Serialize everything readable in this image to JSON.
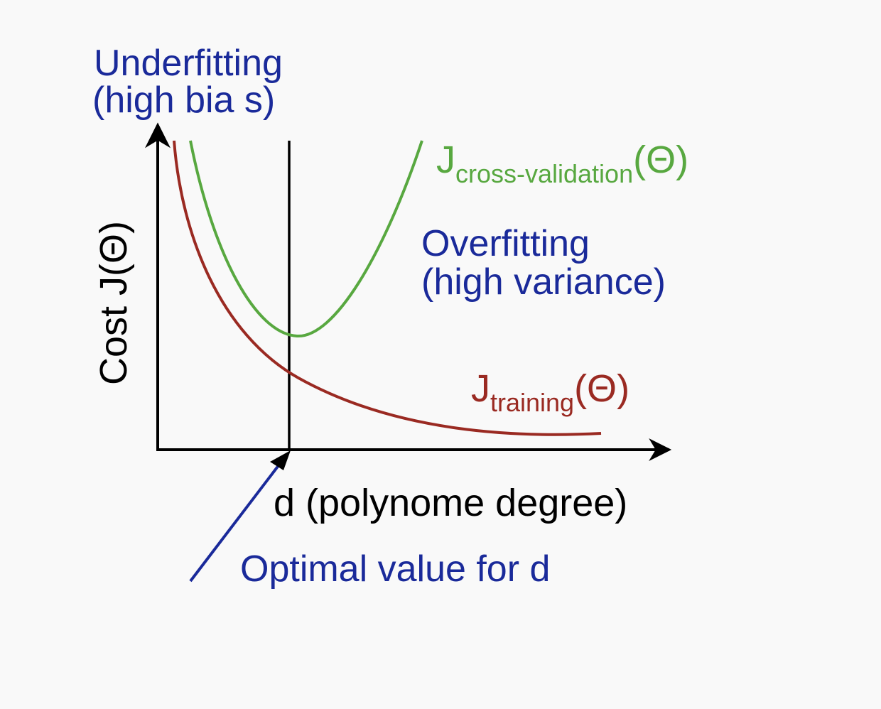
{
  "colors": {
    "background": "#f9f9f9",
    "axis": "#000000",
    "annotation_blue": "#1a2a9a",
    "cv_green": "#58a840",
    "training_red": "#9a2a22"
  },
  "labels": {
    "underfitting_line1": "Underfitting",
    "underfitting_line2": "(high bia s)",
    "overfitting_line1": "Overfitting",
    "overfitting_line2": "(high variance)",
    "y_axis": "Cost J(Θ)",
    "x_axis": "d (polynome degree)",
    "optimal": "Optimal value for d"
  },
  "curves": {
    "cross_validation": {
      "symbol": "J",
      "subscript": "cross-validation",
      "argument": "(Θ)"
    },
    "training": {
      "symbol": "J",
      "subscript": "training",
      "argument": "(Θ)"
    }
  }
}
